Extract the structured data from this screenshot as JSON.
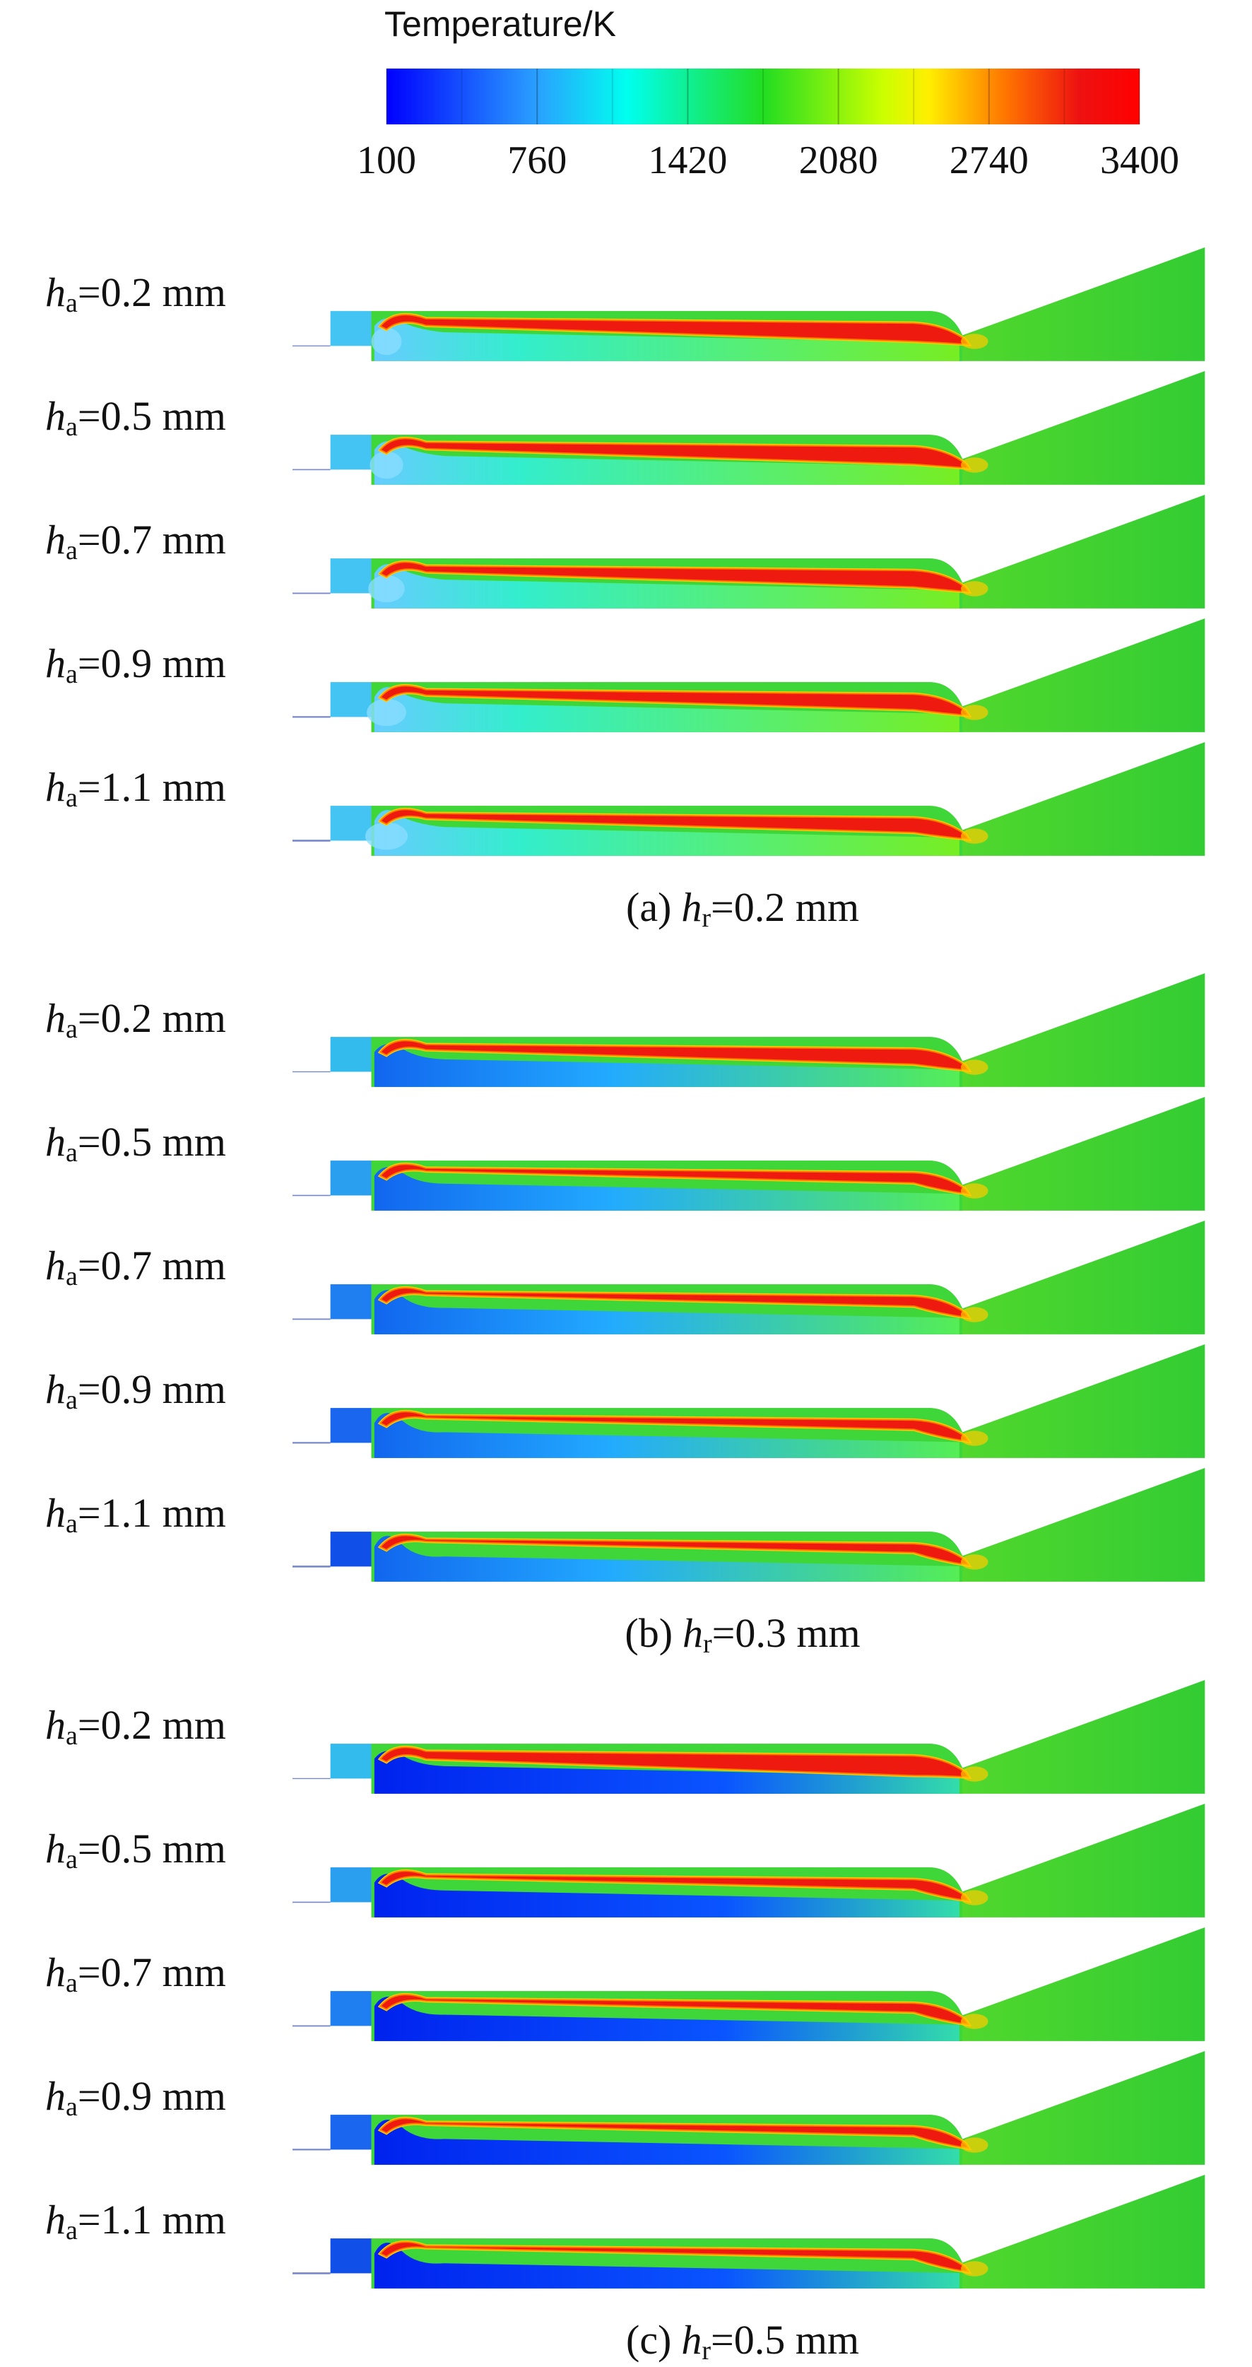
{
  "colorbar": {
    "title": "Temperature/K",
    "ticks": [
      100,
      760,
      1420,
      2080,
      2740,
      3400
    ]
  },
  "panels": [
    {
      "caption": {
        "label": "(a)",
        "symbol": "h",
        "subscript": "r",
        "text": "=0.2 mm"
      },
      "rows": [
        {
          "symbol": "h",
          "subscript": "a",
          "text": "=0.2 mm"
        },
        {
          "symbol": "h",
          "subscript": "a",
          "text": "=0.5 mm"
        },
        {
          "symbol": "h",
          "subscript": "a",
          "text": "=0.7 mm"
        },
        {
          "symbol": "h",
          "subscript": "a",
          "text": "=0.9 mm"
        },
        {
          "symbol": "h",
          "subscript": "a",
          "text": "=1.1 mm"
        }
      ]
    },
    {
      "caption": {
        "label": "(b)",
        "symbol": "h",
        "subscript": "r",
        "text": "=0.3 mm"
      },
      "rows": [
        {
          "symbol": "h",
          "subscript": "a",
          "text": "=0.2 mm"
        },
        {
          "symbol": "h",
          "subscript": "a",
          "text": "=0.5 mm"
        },
        {
          "symbol": "h",
          "subscript": "a",
          "text": "=0.7 mm"
        },
        {
          "symbol": "h",
          "subscript": "a",
          "text": "=0.9 mm"
        },
        {
          "symbol": "h",
          "subscript": "a",
          "text": "=1.1 mm"
        }
      ]
    },
    {
      "caption": {
        "label": "(c)",
        "symbol": "h",
        "subscript": "r",
        "text": "=0.5 mm"
      },
      "rows": [
        {
          "symbol": "h",
          "subscript": "a",
          "text": "=0.2 mm"
        },
        {
          "symbol": "h",
          "subscript": "a",
          "text": "=0.5 mm"
        },
        {
          "symbol": "h",
          "subscript": "a",
          "text": "=0.7 mm"
        },
        {
          "symbol": "h",
          "subscript": "a",
          "text": "=0.9 mm"
        },
        {
          "symbol": "h",
          "subscript": "a",
          "text": "=1.1 mm"
        }
      ]
    }
  ]
}
